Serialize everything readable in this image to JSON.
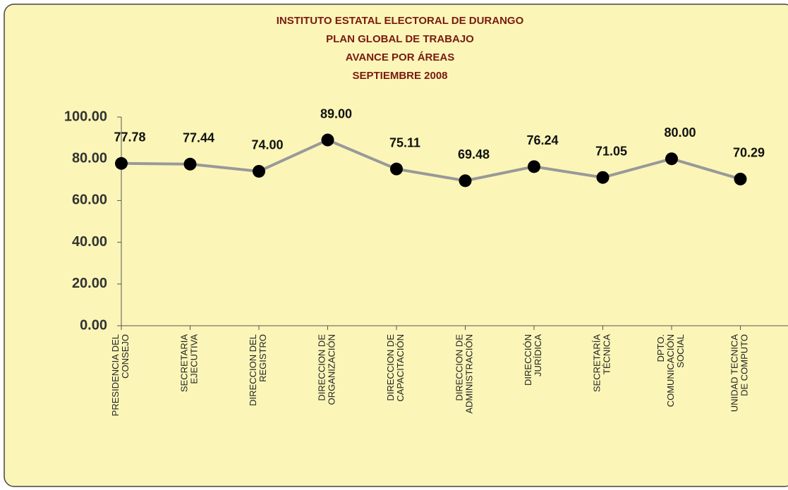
{
  "chart_data": {
    "type": "line",
    "title": [
      "INSTITUTO ESTATAL ELECTORAL DE DURANGO",
      "PLAN GLOBAL DE TRABAJO",
      "AVANCE POR ÁREAS",
      "SEPTIEMBRE  2008"
    ],
    "categories": [
      [
        "PRESIDENCIA DEL",
        "CONSEJO"
      ],
      [
        "SECRETARIA",
        "EJECUTIVA"
      ],
      [
        "DIRECCION DEL",
        "REGISTRO"
      ],
      [
        "DIRECCION DE",
        "ORGANIZACIÓN"
      ],
      [
        "DIRECCION DE",
        "CAPACITACIÓN"
      ],
      [
        "DIRECCION DE",
        "ADMINISTRACIÓN"
      ],
      [
        "DIRECCIÓN",
        "JURÍDICA"
      ],
      [
        "SECRETARÍA",
        "TÉCNICA"
      ],
      [
        "DPTO.",
        "COMUNICACIÓN",
        "SOCIAL"
      ],
      [
        "UNIDAD TECNICA",
        "DE COMPUTO"
      ]
    ],
    "values": [
      77.78,
      77.44,
      74,
      89,
      75.11,
      69.48,
      76.24,
      71.05,
      80,
      70.29
    ],
    "value_labels": [
      "77.78",
      "77.44",
      "74.00",
      "89.00",
      "75.11",
      "69.48",
      "76.24",
      "71.05",
      "80.00",
      "70.29"
    ],
    "color": "#999999",
    "marker_color": "#000000",
    "ylim": [
      0,
      100
    ],
    "yticks": [
      {
        "value": 0,
        "label": "0.00"
      },
      {
        "value": 20,
        "label": "20.00"
      },
      {
        "value": 40,
        "label": "40.00"
      },
      {
        "value": 60,
        "label": "60.00"
      },
      {
        "value": 80,
        "label": "80.00"
      },
      {
        "value": 100,
        "label": "100.00"
      }
    ]
  }
}
